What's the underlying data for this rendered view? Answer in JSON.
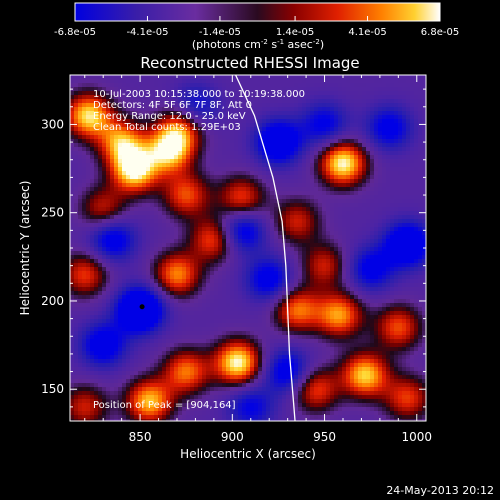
{
  "chart_data": {
    "type": "heatmap",
    "title": "Reconstructed RHESSI Image",
    "xlabel": "Heliocentric X (arcsec)",
    "ylabel": "Heliocentric Y (arcsec)",
    "xlim": [
      812,
      1005
    ],
    "ylim": [
      132,
      328
    ],
    "x_ticks": [
      850,
      900,
      950,
      1000
    ],
    "y_ticks": [
      150,
      200,
      250,
      300
    ],
    "colorbar": {
      "min": -6.8e-05,
      "max": 6.8e-05,
      "tick_values": [
        -6.8e-05,
        -4.1e-05,
        -1.4e-05,
        1.4e-05,
        4.1e-05,
        6.8e-05
      ],
      "tick_labels": [
        "-6.8e-05",
        "-4.1e-05",
        "-1.4e-05",
        "1.4e-05",
        "4.1e-05",
        "6.8e-05"
      ],
      "unit_label_parts": [
        "(photons cm",
        "-2",
        " s",
        "-1",
        " asec",
        "-2",
        ")"
      ]
    },
    "annotations": [
      "10-Jul-2003 10:15:38.000 to 10:19:38.000",
      "Detectors: 4F 5F 6F 7F 8F, Att 0",
      "Energy Range: 12.0 - 25.0 keV",
      "Clean    Total counts: 1.29E+03"
    ],
    "peak_label": "Position of Peak = [904,164]",
    "limb_curve": [
      [
        900,
        332
      ],
      [
        912,
        305
      ],
      [
        922,
        270
      ],
      [
        927,
        245
      ],
      [
        929,
        220
      ],
      [
        930,
        195
      ],
      [
        931,
        170
      ],
      [
        933,
        145
      ],
      [
        934,
        132
      ]
    ],
    "blobs": [
      {
        "x": 822,
        "y": 305,
        "v": 0.9
      },
      {
        "x": 840,
        "y": 290,
        "v": 0.7
      },
      {
        "x": 847,
        "y": 274,
        "v": 1.0
      },
      {
        "x": 872,
        "y": 298,
        "v": 0.55
      },
      {
        "x": 866,
        "y": 285,
        "v": 0.85
      },
      {
        "x": 875,
        "y": 260,
        "v": 0.5
      },
      {
        "x": 830,
        "y": 252,
        "v": 0.35
      },
      {
        "x": 925,
        "y": 290,
        "v": -0.7
      },
      {
        "x": 960,
        "y": 278,
        "v": 1.0
      },
      {
        "x": 985,
        "y": 298,
        "v": -0.4
      },
      {
        "x": 950,
        "y": 300,
        "v": -0.35
      },
      {
        "x": 905,
        "y": 258,
        "v": 0.5
      },
      {
        "x": 935,
        "y": 245,
        "v": 0.35
      },
      {
        "x": 905,
        "y": 240,
        "v": -0.55
      },
      {
        "x": 995,
        "y": 232,
        "v": -0.75
      },
      {
        "x": 835,
        "y": 235,
        "v": -0.5
      },
      {
        "x": 820,
        "y": 215,
        "v": 0.45
      },
      {
        "x": 890,
        "y": 235,
        "v": 0.55
      },
      {
        "x": 870,
        "y": 215,
        "v": 0.65
      },
      {
        "x": 920,
        "y": 212,
        "v": -0.45
      },
      {
        "x": 950,
        "y": 220,
        "v": 0.35
      },
      {
        "x": 975,
        "y": 218,
        "v": -0.4
      },
      {
        "x": 850,
        "y": 195,
        "v": -1.0
      },
      {
        "x": 830,
        "y": 175,
        "v": -0.5
      },
      {
        "x": 958,
        "y": 192,
        "v": 0.7
      },
      {
        "x": 935,
        "y": 195,
        "v": 0.6
      },
      {
        "x": 990,
        "y": 185,
        "v": 0.5
      },
      {
        "x": 903,
        "y": 165,
        "v": 1.0
      },
      {
        "x": 875,
        "y": 160,
        "v": 0.6
      },
      {
        "x": 855,
        "y": 143,
        "v": 0.8
      },
      {
        "x": 930,
        "y": 160,
        "v": -0.5
      },
      {
        "x": 945,
        "y": 150,
        "v": 0.5
      },
      {
        "x": 972,
        "y": 158,
        "v": 0.85
      },
      {
        "x": 995,
        "y": 145,
        "v": 0.45
      },
      {
        "x": 820,
        "y": 140,
        "v": 0.35
      },
      {
        "x": 910,
        "y": 140,
        "v": -0.3
      },
      {
        "x": 880,
        "y": 310,
        "v": -0.3
      }
    ]
  },
  "footer": {
    "timestamp": "24-May-2013 20:12"
  }
}
